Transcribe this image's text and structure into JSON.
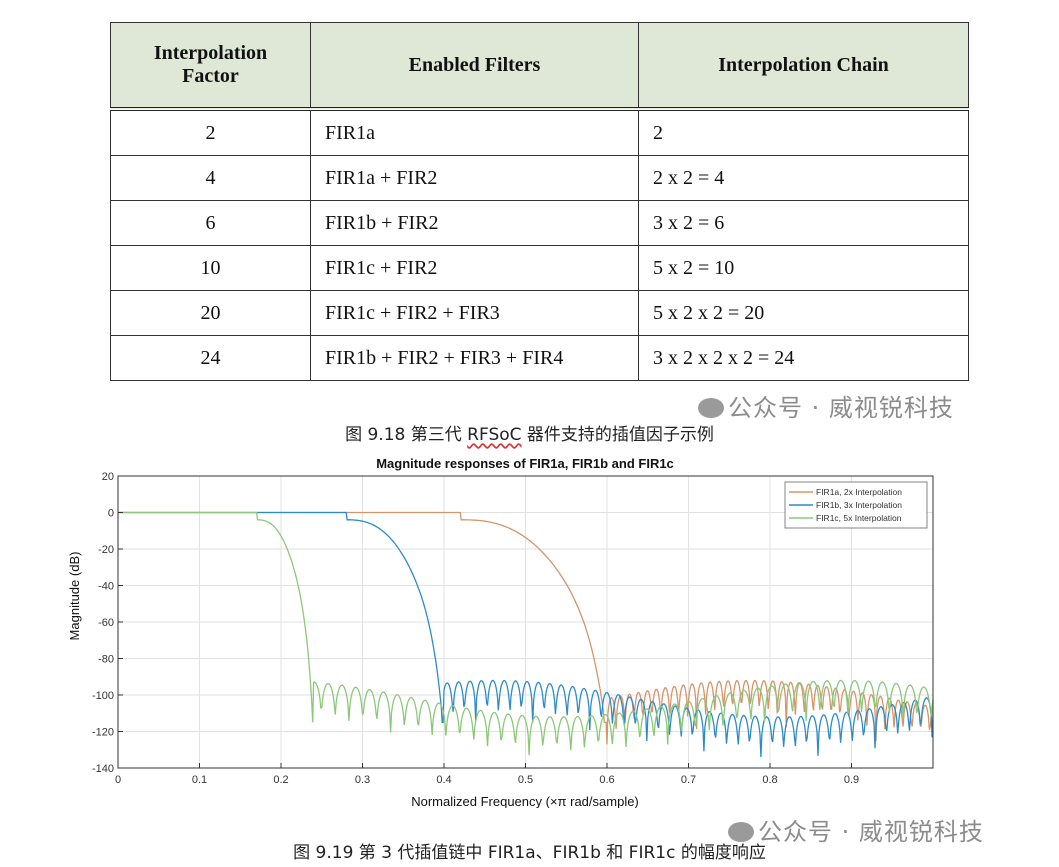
{
  "table": {
    "headers": [
      "Interpolation Factor",
      "Enabled Filters",
      "Interpolation Chain"
    ],
    "rows": [
      [
        "2",
        "FIR1a",
        "2"
      ],
      [
        "4",
        "FIR1a + FIR2",
        "2 x 2 = 4"
      ],
      [
        "6",
        "FIR1b + FIR2",
        "3 x 2 = 6"
      ],
      [
        "10",
        "FIR1c + FIR2",
        "5 x 2 = 10"
      ],
      [
        "20",
        "FIR1c + FIR2 + FIR3",
        "5 x 2 x 2 = 20"
      ],
      [
        "24",
        "FIR1b + FIR2 + FIR3 + FIR4",
        "3 x 2 x 2 x 2 = 24"
      ]
    ]
  },
  "caption1": {
    "prefix": "图 9.18 第三代 ",
    "underlined": "RFSoC",
    "suffix": " 器件支持的插值因子示例"
  },
  "watermark": "公众号 · 威视锐科技",
  "caption2": "图 9.19 第 3 代插值链中 FIR1a、FIR1b 和 FIR1c 的幅度响应",
  "chart_data": {
    "type": "line",
    "title": "Magnitude responses of FIR1a, FIR1b and FIR1c",
    "xlabel": "Normalized Frequency (×π rad/sample)",
    "ylabel": "Magnitude (dB)",
    "xlim": [
      0,
      1
    ],
    "ylim": [
      -140,
      20
    ],
    "xticks": [
      "0",
      "0.1",
      "0.2",
      "0.3",
      "0.4",
      "0.5",
      "0.6",
      "0.7",
      "0.8",
      "0.9"
    ],
    "yticks": [
      "20",
      "0",
      "-20",
      "-40",
      "-60",
      "-80",
      "-100",
      "-120",
      "-140"
    ],
    "grid": true,
    "legend_position": "top-right",
    "series": [
      {
        "name": "FIR1a, 2x Interpolation",
        "color": "#d4956a",
        "passband_edge": 0.42,
        "stopband_edge": 0.6,
        "stopband_level": -100
      },
      {
        "name": "FIR1b, 3x Interpolation",
        "color": "#2e8bc8",
        "passband_edge": 0.28,
        "stopband_edge": 0.4,
        "stopband_level": -100
      },
      {
        "name": "FIR1c, 5x Interpolation",
        "color": "#8cc87a",
        "passband_edge": 0.17,
        "stopband_edge": 0.24,
        "stopband_level": -100
      }
    ]
  }
}
